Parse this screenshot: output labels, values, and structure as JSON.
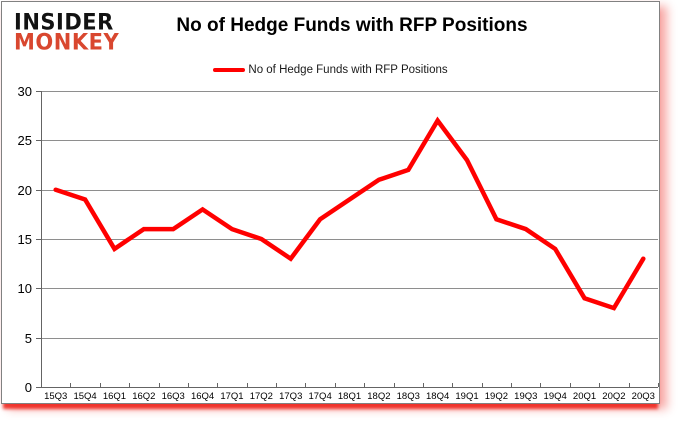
{
  "page": {
    "background": "#ffffff",
    "card_border_color": "#818181",
    "shadow_color": "#ed1c14"
  },
  "logo": {
    "line1": "INSIDER",
    "line2": "MONKEY",
    "line1_color": "#121212",
    "line2_color": "#d9472f"
  },
  "header": {
    "title": "No of Hedge Funds with RFP Positions"
  },
  "legend": {
    "label": "No of Hedge Funds with RFP Positions",
    "marker_color": "#ff0000"
  },
  "chart_data": {
    "type": "line",
    "title": "No of Hedge Funds with RFP Positions",
    "categories": [
      "15Q3",
      "15Q4",
      "16Q1",
      "16Q2",
      "16Q3",
      "16Q4",
      "17Q1",
      "17Q2",
      "17Q3",
      "17Q4",
      "18Q1",
      "18Q2",
      "18Q3",
      "18Q4",
      "19Q1",
      "19Q2",
      "19Q3",
      "19Q4",
      "20Q1",
      "20Q2",
      "20Q3"
    ],
    "series": [
      {
        "name": "No of Hedge Funds with RFP Positions",
        "color": "#ff0000",
        "values": [
          20,
          19,
          14,
          16,
          16,
          18,
          16,
          15,
          13,
          17,
          19,
          21,
          22,
          27,
          23,
          17,
          16,
          14,
          9,
          8,
          13
        ]
      }
    ],
    "xlabel": "",
    "ylabel": "",
    "ylim": [
      0,
      30
    ],
    "ytick_step": 5,
    "yticks": [
      0,
      5,
      10,
      15,
      20,
      25,
      30
    ],
    "grid": true,
    "gridline_color": "#8e8e8e",
    "axis_color": "#646464",
    "label_color": "#000000",
    "legend_position": "top-center"
  }
}
